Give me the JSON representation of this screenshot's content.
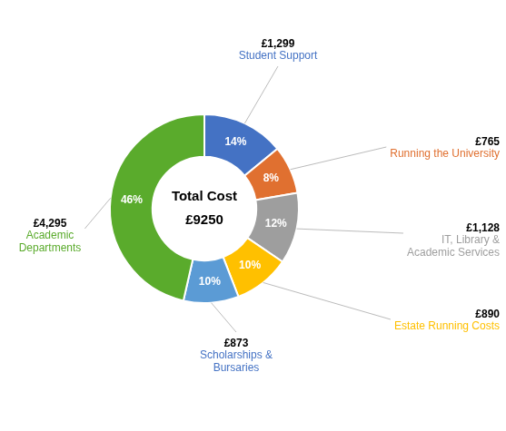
{
  "chart_data": {
    "type": "doughnut",
    "center_text": [
      "Total Cost",
      "£9250"
    ],
    "categories": [
      "Student Support",
      "Running the University",
      "IT, Library &\nAcademic Services",
      "Estate Running Costs",
      "Scholarships &\nBursaries",
      "Academic\nDepartments"
    ],
    "values": [
      1299,
      765,
      1128,
      890,
      873,
      4295
    ],
    "value_labels": [
      "£1,299",
      "£765",
      "£1,128",
      "£890",
      "£873",
      "£4,295"
    ],
    "shares": [
      14,
      8,
      12,
      10,
      10,
      46
    ],
    "share_labels": [
      "14%",
      "8%",
      "12%",
      "10%",
      "10%",
      "46%"
    ],
    "colors": [
      "#4472C4",
      "#E07030",
      "#9E9E9E",
      "#FFC000",
      "#5B9BD5",
      "#5AAB2C"
    ],
    "label_colors": [
      "#4472C4",
      "#E07030",
      "#9E9E9E",
      "#FFC000",
      "#4472C4",
      "#5AAB2C"
    ]
  }
}
